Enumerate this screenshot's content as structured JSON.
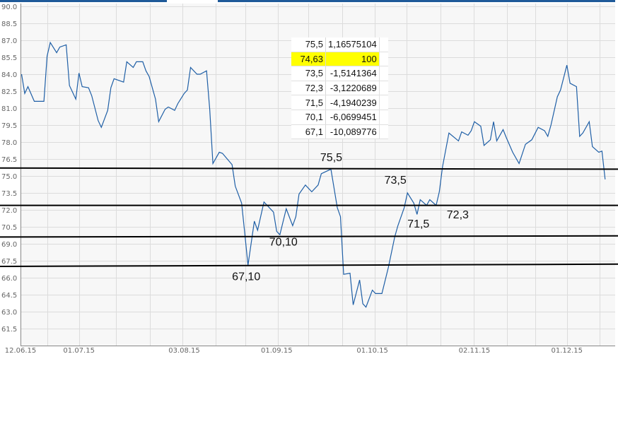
{
  "chart_data": {
    "type": "line",
    "title": "",
    "xlabel": "",
    "ylabel": "",
    "ylim": [
      60.0,
      90.0
    ],
    "yticks": [
      "90.0",
      "88.5",
      "87.0",
      "85.5",
      "84.0",
      "82.5",
      "81.0",
      "79.5",
      "78.0",
      "76.5",
      "75.0",
      "73.5",
      "72.0",
      "70.5",
      "69.0",
      "67.5",
      "66.0",
      "64.5",
      "63.0",
      "61.5"
    ],
    "xticks": [
      "12.06.15",
      "01.07.15",
      "03.08.15",
      "01.09.15",
      "01.10.15",
      "02.11.15",
      "01.12.15"
    ],
    "grid": true,
    "line_color": "#1f5fa6",
    "series": [
      {
        "points": [
          [
            "13.06.15",
            84.0
          ],
          [
            "14.06.15",
            82.3
          ],
          [
            "15.06.15",
            82.9
          ],
          [
            "17.06.15",
            81.6
          ],
          [
            "18.06.15",
            81.6
          ],
          [
            "20.06.15",
            81.6
          ],
          [
            "21.06.15",
            85.6
          ],
          [
            "22.06.15",
            86.8
          ],
          [
            "24.06.15",
            85.9
          ],
          [
            "25.06.15",
            86.4
          ],
          [
            "27.06.15",
            86.6
          ],
          [
            "28.06.15",
            83.0
          ],
          [
            "30.06.15",
            81.8
          ],
          [
            "01.07.15",
            84.1
          ],
          [
            "02.07.15",
            82.9
          ],
          [
            "04.07.15",
            82.8
          ],
          [
            "05.07.15",
            82.1
          ],
          [
            "07.07.15",
            79.9
          ],
          [
            "08.07.15",
            79.3
          ],
          [
            "10.07.15",
            80.8
          ],
          [
            "11.07.15",
            82.8
          ],
          [
            "12.07.15",
            83.6
          ],
          [
            "15.07.15",
            83.3
          ],
          [
            "16.07.15",
            85.1
          ],
          [
            "18.07.15",
            84.6
          ],
          [
            "19.07.15",
            85.1
          ],
          [
            "21.07.15",
            85.1
          ],
          [
            "22.07.15",
            84.3
          ],
          [
            "23.07.15",
            83.8
          ],
          [
            "25.07.15",
            81.8
          ],
          [
            "26.07.15",
            79.8
          ],
          [
            "28.07.15",
            80.9
          ],
          [
            "29.07.15",
            81.1
          ],
          [
            "31.07.15",
            80.8
          ],
          [
            "01.08.15",
            81.4
          ],
          [
            "03.08.15",
            82.3
          ],
          [
            "04.08.15",
            82.6
          ],
          [
            "05.08.15",
            84.6
          ],
          [
            "07.08.15",
            84.0
          ],
          [
            "08.08.15",
            84.0
          ],
          [
            "10.08.15",
            84.3
          ],
          [
            "11.08.15",
            80.9
          ],
          [
            "12.08.15",
            76.1
          ],
          [
            "14.08.15",
            77.1
          ],
          [
            "15.08.15",
            77.0
          ],
          [
            "18.08.15",
            76.0
          ],
          [
            "19.08.15",
            74.1
          ],
          [
            "21.08.15",
            72.6
          ],
          [
            "22.08.15",
            69.9
          ],
          [
            "23.08.15",
            67.1
          ],
          [
            "25.08.15",
            71.0
          ],
          [
            "26.08.15",
            70.2
          ],
          [
            "28.08.15",
            72.7
          ],
          [
            "29.08.15",
            72.4
          ],
          [
            "31.08.15",
            71.8
          ],
          [
            "01.09.15",
            70.1
          ],
          [
            "02.09.15",
            69.8
          ],
          [
            "04.09.15",
            72.1
          ],
          [
            "06.09.15",
            70.6
          ],
          [
            "07.09.15",
            71.4
          ],
          [
            "08.09.15",
            73.4
          ],
          [
            "10.09.15",
            74.2
          ],
          [
            "12.09.15",
            73.6
          ],
          [
            "14.09.15",
            74.2
          ],
          [
            "15.09.15",
            75.2
          ],
          [
            "18.09.15",
            75.6
          ],
          [
            "20.09.15",
            72.2
          ],
          [
            "21.09.15",
            71.4
          ],
          [
            "22.09.15",
            66.3
          ],
          [
            "24.09.15",
            66.4
          ],
          [
            "25.09.15",
            63.6
          ],
          [
            "27.09.15",
            65.8
          ],
          [
            "28.09.15",
            63.7
          ],
          [
            "29.09.15",
            63.4
          ],
          [
            "01.10.15",
            64.9
          ],
          [
            "02.10.15",
            64.6
          ],
          [
            "04.10.15",
            64.6
          ],
          [
            "06.10.15",
            66.9
          ],
          [
            "08.10.15",
            69.6
          ],
          [
            "09.10.15",
            70.6
          ],
          [
            "11.10.15",
            72.2
          ],
          [
            "12.10.15",
            73.5
          ],
          [
            "14.10.15",
            72.6
          ],
          [
            "15.10.15",
            71.6
          ],
          [
            "16.10.15",
            72.9
          ],
          [
            "18.10.15",
            72.4
          ],
          [
            "19.10.15",
            72.9
          ],
          [
            "21.10.15",
            72.4
          ],
          [
            "22.10.15",
            73.6
          ],
          [
            "23.10.15",
            75.8
          ],
          [
            "25.10.15",
            78.8
          ],
          [
            "28.10.15",
            78.1
          ],
          [
            "29.10.15",
            78.9
          ],
          [
            "31.10.15",
            78.6
          ],
          [
            "01.11.15",
            79.0
          ],
          [
            "02.11.15",
            79.8
          ],
          [
            "04.11.15",
            79.4
          ],
          [
            "05.11.15",
            77.7
          ],
          [
            "07.11.15",
            78.2
          ],
          [
            "08.11.15",
            79.8
          ],
          [
            "09.11.15",
            78.1
          ],
          [
            "11.11.15",
            79.1
          ],
          [
            "12.11.15",
            78.4
          ],
          [
            "14.11.15",
            77.1
          ],
          [
            "16.11.15",
            76.1
          ],
          [
            "18.11.15",
            77.8
          ],
          [
            "20.11.15",
            78.2
          ],
          [
            "22.11.15",
            79.3
          ],
          [
            "24.11.15",
            79.0
          ],
          [
            "25.11.15",
            78.5
          ],
          [
            "26.11.15",
            79.5
          ],
          [
            "28.11.15",
            82.0
          ],
          [
            "29.11.15",
            82.6
          ],
          [
            "01.12.15",
            84.8
          ],
          [
            "02.12.15",
            83.2
          ],
          [
            "04.12.15",
            82.9
          ],
          [
            "05.12.15",
            78.5
          ],
          [
            "06.12.15",
            78.8
          ],
          [
            "08.12.15",
            79.8
          ],
          [
            "09.12.15",
            77.6
          ],
          [
            "11.12.15",
            77.1
          ],
          [
            "12.12.15",
            77.2
          ],
          [
            "13.12.15",
            74.7
          ]
        ]
      }
    ],
    "level_lines": [
      {
        "start": 75.7,
        "end": 75.6
      },
      {
        "start": 72.4,
        "end": 72.4
      },
      {
        "start": 69.6,
        "end": 69.7
      },
      {
        "start": 67.0,
        "end": 67.2
      }
    ],
    "level_color": "#000000",
    "annotations": [
      {
        "text": "75,5",
        "date": "17.09.15",
        "value": 75.5
      },
      {
        "text": "73,5",
        "date": "10.10.15",
        "value": 73.5
      },
      {
        "text": "72,3",
        "date": "24.10.15",
        "value": 72.3
      },
      {
        "text": "71,5",
        "date": "15.10.15",
        "value": 71.5
      },
      {
        "text": "70,10",
        "date": "02.09.15",
        "value": 70.1
      },
      {
        "text": "67,10",
        "date": "22.08.15",
        "value": 67.1
      }
    ]
  },
  "table": {
    "rows": [
      {
        "level": "75,5",
        "change": "1,16575104",
        "highlight": false
      },
      {
        "level": "74,63",
        "change": "100",
        "highlight": true
      },
      {
        "level": "73,5",
        "change": "-1,5141364",
        "highlight": false
      },
      {
        "level": "72,3",
        "change": "-3,1220689",
        "highlight": false
      },
      {
        "level": "71,5",
        "change": "-4,1940239",
        "highlight": false
      },
      {
        "level": "70,1",
        "change": "-6,0699451",
        "highlight": false
      },
      {
        "level": "67,1",
        "change": "-10,089776",
        "highlight": false
      }
    ],
    "highlight_color": "#ffff00"
  },
  "top_bar_color": "#1f5a99"
}
